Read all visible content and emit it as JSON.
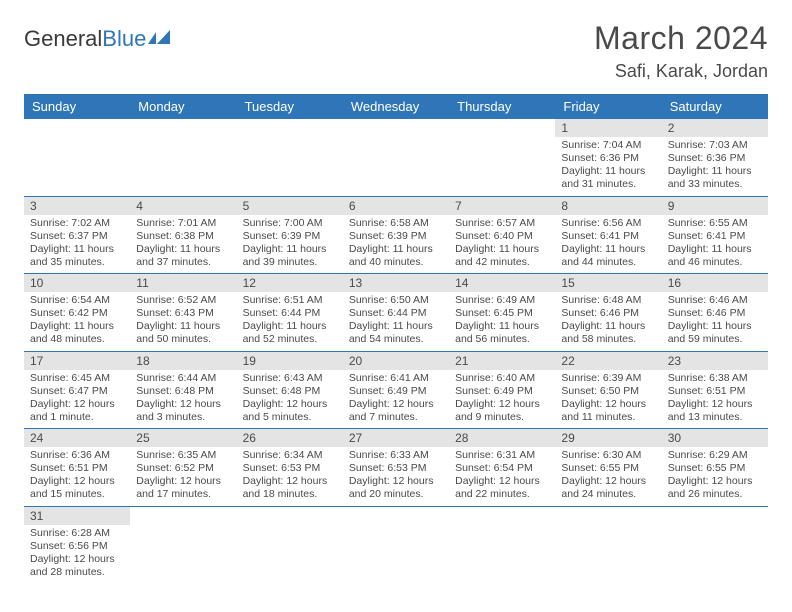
{
  "logo": {
    "text1": "General",
    "text2": "Blue"
  },
  "title": "March 2024",
  "location": "Safi, Karak, Jordan",
  "headers": [
    "Sunday",
    "Monday",
    "Tuesday",
    "Wednesday",
    "Thursday",
    "Friday",
    "Saturday"
  ],
  "colors": {
    "header_bg": "#2f76b8",
    "daynum_bg": "#e4e4e4",
    "border": "#2f76b8"
  },
  "weeks": [
    [
      null,
      null,
      null,
      null,
      null,
      {
        "n": "1",
        "sr": "7:04 AM",
        "ss": "6:36 PM",
        "dl": "11 hours and 31 minutes."
      },
      {
        "n": "2",
        "sr": "7:03 AM",
        "ss": "6:36 PM",
        "dl": "11 hours and 33 minutes."
      }
    ],
    [
      {
        "n": "3",
        "sr": "7:02 AM",
        "ss": "6:37 PM",
        "dl": "11 hours and 35 minutes."
      },
      {
        "n": "4",
        "sr": "7:01 AM",
        "ss": "6:38 PM",
        "dl": "11 hours and 37 minutes."
      },
      {
        "n": "5",
        "sr": "7:00 AM",
        "ss": "6:39 PM",
        "dl": "11 hours and 39 minutes."
      },
      {
        "n": "6",
        "sr": "6:58 AM",
        "ss": "6:39 PM",
        "dl": "11 hours and 40 minutes."
      },
      {
        "n": "7",
        "sr": "6:57 AM",
        "ss": "6:40 PM",
        "dl": "11 hours and 42 minutes."
      },
      {
        "n": "8",
        "sr": "6:56 AM",
        "ss": "6:41 PM",
        "dl": "11 hours and 44 minutes."
      },
      {
        "n": "9",
        "sr": "6:55 AM",
        "ss": "6:41 PM",
        "dl": "11 hours and 46 minutes."
      }
    ],
    [
      {
        "n": "10",
        "sr": "6:54 AM",
        "ss": "6:42 PM",
        "dl": "11 hours and 48 minutes."
      },
      {
        "n": "11",
        "sr": "6:52 AM",
        "ss": "6:43 PM",
        "dl": "11 hours and 50 minutes."
      },
      {
        "n": "12",
        "sr": "6:51 AM",
        "ss": "6:44 PM",
        "dl": "11 hours and 52 minutes."
      },
      {
        "n": "13",
        "sr": "6:50 AM",
        "ss": "6:44 PM",
        "dl": "11 hours and 54 minutes."
      },
      {
        "n": "14",
        "sr": "6:49 AM",
        "ss": "6:45 PM",
        "dl": "11 hours and 56 minutes."
      },
      {
        "n": "15",
        "sr": "6:48 AM",
        "ss": "6:46 PM",
        "dl": "11 hours and 58 minutes."
      },
      {
        "n": "16",
        "sr": "6:46 AM",
        "ss": "6:46 PM",
        "dl": "11 hours and 59 minutes."
      }
    ],
    [
      {
        "n": "17",
        "sr": "6:45 AM",
        "ss": "6:47 PM",
        "dl": "12 hours and 1 minute."
      },
      {
        "n": "18",
        "sr": "6:44 AM",
        "ss": "6:48 PM",
        "dl": "12 hours and 3 minutes."
      },
      {
        "n": "19",
        "sr": "6:43 AM",
        "ss": "6:48 PM",
        "dl": "12 hours and 5 minutes."
      },
      {
        "n": "20",
        "sr": "6:41 AM",
        "ss": "6:49 PM",
        "dl": "12 hours and 7 minutes."
      },
      {
        "n": "21",
        "sr": "6:40 AM",
        "ss": "6:49 PM",
        "dl": "12 hours and 9 minutes."
      },
      {
        "n": "22",
        "sr": "6:39 AM",
        "ss": "6:50 PM",
        "dl": "12 hours and 11 minutes."
      },
      {
        "n": "23",
        "sr": "6:38 AM",
        "ss": "6:51 PM",
        "dl": "12 hours and 13 minutes."
      }
    ],
    [
      {
        "n": "24",
        "sr": "6:36 AM",
        "ss": "6:51 PM",
        "dl": "12 hours and 15 minutes."
      },
      {
        "n": "25",
        "sr": "6:35 AM",
        "ss": "6:52 PM",
        "dl": "12 hours and 17 minutes."
      },
      {
        "n": "26",
        "sr": "6:34 AM",
        "ss": "6:53 PM",
        "dl": "12 hours and 18 minutes."
      },
      {
        "n": "27",
        "sr": "6:33 AM",
        "ss": "6:53 PM",
        "dl": "12 hours and 20 minutes."
      },
      {
        "n": "28",
        "sr": "6:31 AM",
        "ss": "6:54 PM",
        "dl": "12 hours and 22 minutes."
      },
      {
        "n": "29",
        "sr": "6:30 AM",
        "ss": "6:55 PM",
        "dl": "12 hours and 24 minutes."
      },
      {
        "n": "30",
        "sr": "6:29 AM",
        "ss": "6:55 PM",
        "dl": "12 hours and 26 minutes."
      }
    ],
    [
      {
        "n": "31",
        "sr": "6:28 AM",
        "ss": "6:56 PM",
        "dl": "12 hours and 28 minutes."
      },
      null,
      null,
      null,
      null,
      null,
      null
    ]
  ],
  "labels": {
    "sunrise": "Sunrise:",
    "sunset": "Sunset:",
    "daylight": "Daylight:"
  }
}
